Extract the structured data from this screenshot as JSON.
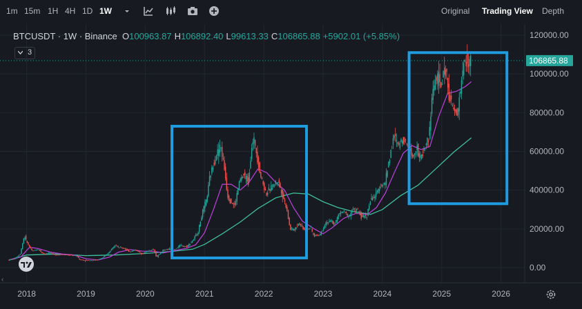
{
  "toolbar": {
    "timeframes": [
      "1m",
      "15m",
      "1H",
      "4H",
      "1D",
      "1W"
    ],
    "active_timeframe": "1W",
    "icons": [
      "chevron-down-icon",
      "indicators-icon",
      "candles-icon",
      "camera-icon",
      "add-icon"
    ],
    "views": [
      "Original",
      "Trading View",
      "Depth"
    ],
    "active_view": "Trading View"
  },
  "legend": {
    "symbol": "BTCUSDT · 1W · Binance",
    "open_label": "O",
    "open": "100963.87",
    "high_label": "H",
    "high": "106892.40",
    "low_label": "L",
    "low": "99613.33",
    "close_label": "C",
    "close": "106865.88",
    "change": "+5902.01 (+5.85%)",
    "indicator_count": "3"
  },
  "colors": {
    "background": "#171a21",
    "up": "#26a69a",
    "down": "#ef5350",
    "ma_fast": "#b43fd1",
    "ma_slow": "#3fbf9e",
    "highlight": "#1f9be0",
    "price_tag": "#26a69a"
  },
  "chart_data": {
    "type": "line",
    "description_series": [
      "price",
      "ma_fast",
      "ma_slow"
    ],
    "x_ticks": [
      "2018",
      "2019",
      "2020",
      "2021",
      "2022",
      "2023",
      "2024",
      "2025",
      "2026"
    ],
    "y_ticks": [
      "0.00",
      "20000.00",
      "40000.00",
      "60000.00",
      "80000.00",
      "100000.00",
      "120000.00"
    ],
    "ylim": [
      0,
      120000
    ],
    "xlim": [
      2017.55,
      2026.4
    ],
    "last_price": "106865.88",
    "series": [
      {
        "key": "price",
        "points": [
          [
            2017.7,
            3900
          ],
          [
            2017.8,
            4500
          ],
          [
            2017.9,
            7000
          ],
          [
            2017.97,
            16500
          ],
          [
            2018.0,
            14000
          ],
          [
            2018.05,
            11000
          ],
          [
            2018.1,
            8500
          ],
          [
            2018.2,
            9500
          ],
          [
            2018.3,
            7000
          ],
          [
            2018.4,
            7500
          ],
          [
            2018.5,
            6500
          ],
          [
            2018.6,
            6800
          ],
          [
            2018.7,
            6500
          ],
          [
            2018.85,
            6300
          ],
          [
            2018.9,
            4200
          ],
          [
            2019.0,
            3700
          ],
          [
            2019.1,
            3800
          ],
          [
            2019.2,
            4000
          ],
          [
            2019.3,
            5200
          ],
          [
            2019.4,
            8000
          ],
          [
            2019.5,
            12000
          ],
          [
            2019.55,
            10500
          ],
          [
            2019.65,
            10000
          ],
          [
            2019.75,
            8200
          ],
          [
            2019.85,
            9200
          ],
          [
            2019.95,
            7200
          ],
          [
            2020.05,
            8500
          ],
          [
            2020.15,
            9500
          ],
          [
            2020.2,
            5200
          ],
          [
            2020.3,
            8800
          ],
          [
            2020.4,
            9600
          ],
          [
            2020.5,
            9200
          ],
          [
            2020.6,
            11500
          ],
          [
            2020.7,
            10800
          ],
          [
            2020.8,
            13500
          ],
          [
            2020.9,
            18500
          ],
          [
            2020.97,
            28000
          ],
          [
            2021.05,
            36000
          ],
          [
            2021.1,
            47000
          ],
          [
            2021.2,
            58000
          ],
          [
            2021.28,
            63000
          ],
          [
            2021.35,
            50000
          ],
          [
            2021.4,
            37000
          ],
          [
            2021.45,
            34000
          ],
          [
            2021.52,
            32000
          ],
          [
            2021.6,
            45000
          ],
          [
            2021.68,
            48000
          ],
          [
            2021.75,
            44000
          ],
          [
            2021.8,
            62000
          ],
          [
            2021.85,
            66000
          ],
          [
            2021.9,
            57000
          ],
          [
            2021.95,
            48000
          ],
          [
            2022.0,
            43000
          ],
          [
            2022.05,
            38000
          ],
          [
            2022.15,
            42000
          ],
          [
            2022.25,
            45000
          ],
          [
            2022.32,
            38000
          ],
          [
            2022.4,
            30000
          ],
          [
            2022.45,
            20000
          ],
          [
            2022.52,
            19500
          ],
          [
            2022.6,
            23000
          ],
          [
            2022.7,
            19500
          ],
          [
            2022.8,
            20500
          ],
          [
            2022.85,
            16500
          ],
          [
            2022.95,
            16800
          ],
          [
            2023.05,
            23000
          ],
          [
            2023.15,
            24000
          ],
          [
            2023.2,
            22000
          ],
          [
            2023.28,
            28000
          ],
          [
            2023.35,
            29000
          ],
          [
            2023.45,
            26500
          ],
          [
            2023.5,
            30000
          ],
          [
            2023.6,
            29500
          ],
          [
            2023.65,
            26000
          ],
          [
            2023.75,
            27000
          ],
          [
            2023.8,
            34500
          ],
          [
            2023.9,
            37500
          ],
          [
            2023.97,
            42500
          ],
          [
            2024.05,
            43000
          ],
          [
            2024.1,
            52000
          ],
          [
            2024.2,
            68000
          ],
          [
            2024.28,
            63000
          ],
          [
            2024.35,
            67000
          ],
          [
            2024.45,
            63000
          ],
          [
            2024.52,
            57000
          ],
          [
            2024.6,
            64000
          ],
          [
            2024.62,
            55000
          ],
          [
            2024.7,
            60000
          ],
          [
            2024.8,
            68000
          ],
          [
            2024.85,
            90000
          ],
          [
            2024.9,
            97000
          ],
          [
            2024.95,
            98000
          ],
          [
            2025.0,
            94000
          ],
          [
            2025.05,
            102000
          ],
          [
            2025.1,
            98000
          ],
          [
            2025.15,
            86000
          ],
          [
            2025.2,
            82000
          ],
          [
            2025.27,
            78000
          ],
          [
            2025.33,
            94000
          ],
          [
            2025.38,
            104000
          ],
          [
            2025.42,
            108000
          ],
          [
            2025.47,
            104000
          ],
          [
            2025.5,
            106865
          ]
        ]
      },
      {
        "key": "ma_fast",
        "points": [
          [
            2017.7,
            3900
          ],
          [
            2017.9,
            5500
          ],
          [
            2018.05,
            10500
          ],
          [
            2018.2,
            9800
          ],
          [
            2018.4,
            8000
          ],
          [
            2018.6,
            7000
          ],
          [
            2018.8,
            6500
          ],
          [
            2019.0,
            4600
          ],
          [
            2019.2,
            3900
          ],
          [
            2019.4,
            5500
          ],
          [
            2019.55,
            8000
          ],
          [
            2019.75,
            9300
          ],
          [
            2019.95,
            8500
          ],
          [
            2020.15,
            8400
          ],
          [
            2020.3,
            7600
          ],
          [
            2020.5,
            8800
          ],
          [
            2020.7,
            10000
          ],
          [
            2020.85,
            11800
          ],
          [
            2021.0,
            18000
          ],
          [
            2021.15,
            30000
          ],
          [
            2021.3,
            43000
          ],
          [
            2021.45,
            43000
          ],
          [
            2021.6,
            40000
          ],
          [
            2021.75,
            44000
          ],
          [
            2021.9,
            51000
          ],
          [
            2022.05,
            49000
          ],
          [
            2022.2,
            44000
          ],
          [
            2022.35,
            40000
          ],
          [
            2022.5,
            31000
          ],
          [
            2022.65,
            24000
          ],
          [
            2022.85,
            20000
          ],
          [
            2023.0,
            17500
          ],
          [
            2023.15,
            20500
          ],
          [
            2023.35,
            25500
          ],
          [
            2023.55,
            28000
          ],
          [
            2023.75,
            27500
          ],
          [
            2023.9,
            31000
          ],
          [
            2024.05,
            38500
          ],
          [
            2024.2,
            49000
          ],
          [
            2024.35,
            59000
          ],
          [
            2024.5,
            63000
          ],
          [
            2024.65,
            61000
          ],
          [
            2024.8,
            62500
          ],
          [
            2024.95,
            78000
          ],
          [
            2025.1,
            90000
          ],
          [
            2025.25,
            91000
          ],
          [
            2025.4,
            93500
          ],
          [
            2025.5,
            96000
          ]
        ]
      },
      {
        "key": "ma_slow",
        "points": [
          [
            2017.7,
            3900
          ],
          [
            2018.0,
            6500
          ],
          [
            2018.5,
            7000
          ],
          [
            2019.0,
            6200
          ],
          [
            2019.5,
            6500
          ],
          [
            2020.0,
            7300
          ],
          [
            2020.5,
            8500
          ],
          [
            2020.8,
            9500
          ],
          [
            2021.0,
            12000
          ],
          [
            2021.3,
            17500
          ],
          [
            2021.6,
            23500
          ],
          [
            2021.9,
            30500
          ],
          [
            2022.2,
            36000
          ],
          [
            2022.5,
            38500
          ],
          [
            2022.75,
            38000
          ],
          [
            2023.0,
            34000
          ],
          [
            2023.25,
            31000
          ],
          [
            2023.5,
            29000
          ],
          [
            2023.8,
            27500
          ],
          [
            2024.0,
            30000
          ],
          [
            2024.3,
            37000
          ],
          [
            2024.6,
            42500
          ],
          [
            2024.9,
            51000
          ],
          [
            2025.2,
            59500
          ],
          [
            2025.5,
            67000
          ]
        ]
      }
    ],
    "highlight_boxes": [
      {
        "x0": 2020.45,
        "x1": 2022.72,
        "y0": 5000,
        "y1": 73000
      },
      {
        "x0": 2024.45,
        "x1": 2026.1,
        "y0": 33000,
        "y1": 111000
      }
    ]
  }
}
